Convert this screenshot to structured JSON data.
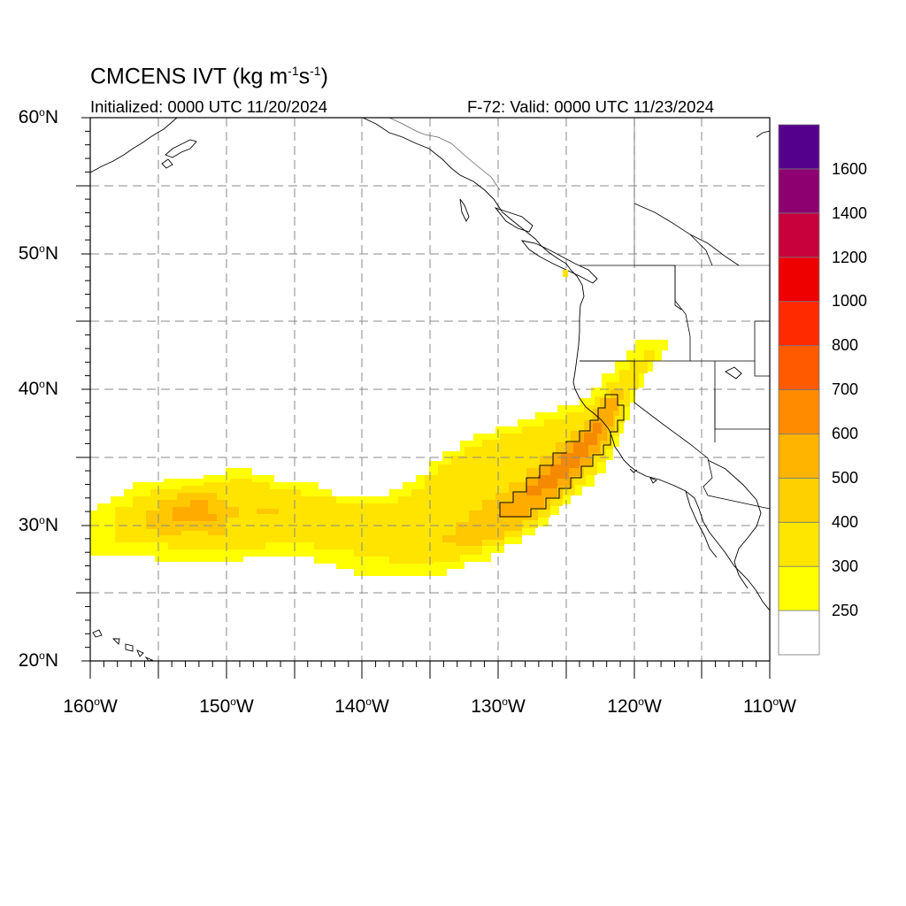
{
  "title": {
    "main": "CMCENS IVT (kg m",
    "exp1": "-1",
    "mid": "s",
    "exp2": "-1",
    "end": ")"
  },
  "subtitle": {
    "left": "Initialized: 0000 UTC 11/20/2024",
    "right": "F-72: Valid: 0000 UTC 11/23/2024"
  },
  "axes": {
    "y_ticks": [
      {
        "num": "60",
        "hem": "N"
      },
      {
        "num": "50",
        "hem": "N"
      },
      {
        "num": "40",
        "hem": "N"
      },
      {
        "num": "30",
        "hem": "N"
      },
      {
        "num": "20",
        "hem": "N"
      }
    ],
    "x_ticks": [
      {
        "num": "160",
        "hem": "W"
      },
      {
        "num": "150",
        "hem": "W"
      },
      {
        "num": "140",
        "hem": "W"
      },
      {
        "num": "130",
        "hem": "W"
      },
      {
        "num": "120",
        "hem": "W"
      },
      {
        "num": "110",
        "hem": "W"
      }
    ],
    "lat_range": [
      20,
      60
    ],
    "lon_range": [
      -160,
      -110
    ],
    "grid": "dashed every 5 degrees"
  },
  "colorbar": {
    "labels": [
      "1600",
      "1400",
      "1200",
      "1000",
      "800",
      "700",
      "600",
      "500",
      "400",
      "300",
      "250"
    ],
    "colors": [
      "#ffffff",
      "#ffff00",
      "#ffe600",
      "#ffd000",
      "#ffb400",
      "#ff8c00",
      "#ff5a00",
      "#ff2a00",
      "#ee0000",
      "#c8003c",
      "#8c0070",
      "#55008c"
    ]
  },
  "ivt_field": {
    "levels": [
      250,
      300,
      400,
      500,
      600
    ],
    "colors": {
      "250": "#ffff00",
      "300": "#ffe600",
      "400": "#ffcc00",
      "500": "#ffad00",
      "600": "#f58a00"
    },
    "contour_level": 500,
    "cell_size_deg": 0.5,
    "row_direction": "north-to-south",
    "rows": [
      {
        "lat": 37.5,
        "runs": [
          {
            "lat_from": 37.5,
            "lat_to": 37.0,
            "lon_from": -122.5,
            "lon_to": -121.5,
            "level": 600
          }
        ]
      },
      {
        "lat": 36.75,
        "runs": [
          {
            "lat_from": 37.0,
            "lat_to": 36.0,
            "lon_from": -123.5,
            "lon_to": -121.5,
            "level": 600
          }
        ]
      },
      {
        "lat": 35.75,
        "runs": [
          {
            "lat_from": 36.0,
            "lat_to": 35.0,
            "lon_from": -124.5,
            "lon_to": -122.5,
            "level": 600
          }
        ]
      },
      {
        "lat": 34.75,
        "runs": [
          {
            "lat_from": 35.0,
            "lat_to": 34.0,
            "lon_from": -126.0,
            "lon_to": -123.5,
            "level": 600
          }
        ]
      },
      {
        "lat": 33.75,
        "runs": [
          {
            "lat_from": 34.0,
            "lat_to": 33.0,
            "lon_from": -127.0,
            "lon_to": -124.5,
            "level": 600
          }
        ]
      }
    ]
  }
}
